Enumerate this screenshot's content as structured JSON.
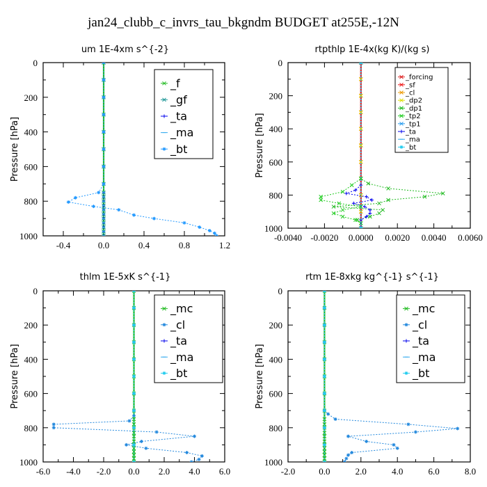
{
  "title": "jan24_clubb_c_invrs_tau_bkgndm  BUDGET at255E,-12N",
  "chart_data": [
    {
      "type": "line",
      "title": "um   1E-4xm s^{-2}",
      "ylabel": "Pressure [hPa]",
      "xlim": [
        -0.6,
        1.2
      ],
      "ylim": [
        1000,
        0
      ],
      "xticks": [
        "-0.4",
        "0.0",
        "0.4",
        "0.8",
        "1.2"
      ],
      "xtick_values": [
        -0.4,
        0.0,
        0.4,
        0.8,
        1.2
      ],
      "yticks": [
        "0",
        "200",
        "400",
        "600",
        "800",
        "1000"
      ],
      "ytick_values": [
        0,
        200,
        400,
        600,
        800,
        1000
      ],
      "legend": {
        "placement": "top-right",
        "font_size": 16
      },
      "series": [
        {
          "name": "_f",
          "color": "#22bb22",
          "marker": "x",
          "y": [
            0,
            100,
            200,
            300,
            400,
            500,
            600,
            700,
            750,
            775,
            800,
            825,
            850,
            875,
            900,
            925,
            950,
            975,
            1000
          ],
          "x": [
            0,
            0,
            0,
            0,
            0,
            0,
            0,
            0,
            0,
            0,
            0,
            0,
            0,
            0,
            0,
            0,
            0,
            0,
            0
          ]
        },
        {
          "name": "_gf",
          "color": "#229999",
          "marker": "x",
          "y": [
            0,
            100,
            200,
            300,
            400,
            500,
            600,
            700,
            750,
            775,
            800,
            825,
            850,
            875,
            900,
            925,
            950,
            975,
            1000
          ],
          "x": [
            0,
            0,
            0,
            0,
            0,
            0,
            0,
            0,
            0,
            0,
            0,
            0,
            0,
            0,
            0,
            0,
            0,
            0,
            0
          ]
        },
        {
          "name": "_ta",
          "color": "#0000ee",
          "marker": "+",
          "y": [
            0,
            100,
            200,
            300,
            400,
            500,
            600,
            700,
            750,
            775,
            800,
            825,
            850,
            875,
            900,
            925,
            950,
            975,
            1000
          ],
          "x": [
            0,
            0,
            0,
            0,
            0,
            0,
            0,
            0,
            0,
            0,
            0,
            0,
            0,
            0,
            0,
            0,
            0,
            0,
            0
          ]
        },
        {
          "name": "_ma",
          "color": "#33aaee",
          "marker": "-",
          "y": [
            0,
            100,
            200,
            300,
            400,
            500,
            600,
            700,
            750,
            775,
            800,
            825,
            850,
            875,
            900,
            925,
            950,
            975,
            1000
          ],
          "x": [
            0,
            0,
            0,
            0,
            0,
            0,
            0,
            0,
            0,
            0,
            0,
            0,
            0,
            0,
            0,
            0,
            0,
            0,
            0
          ]
        },
        {
          "name": "_bt",
          "color": "#2299ff",
          "marker": "*",
          "y": [
            0,
            100,
            200,
            300,
            400,
            500,
            600,
            700,
            750,
            780,
            805,
            830,
            850,
            880,
            900,
            925,
            950,
            970,
            985,
            1000
          ],
          "x": [
            0,
            0,
            0,
            0,
            0,
            0,
            0,
            0,
            -0.05,
            -0.28,
            -0.35,
            -0.1,
            0.15,
            0.3,
            0.5,
            0.8,
            0.95,
            1.05,
            1.1,
            1.12
          ]
        }
      ]
    },
    {
      "type": "line",
      "title": "rtpthlp   1E-4x(kg K)/(kg s)",
      "ylabel": "Pressure [hPa]",
      "xlim": [
        -0.004,
        0.006
      ],
      "ylim": [
        1000,
        0
      ],
      "xticks": [
        "-0.0040",
        "-0.0020",
        "0.0000",
        "0.0020",
        "0.0040",
        "0.0060"
      ],
      "xtick_values": [
        -0.004,
        -0.002,
        0.0,
        0.002,
        0.004,
        0.006
      ],
      "yticks": [
        "0",
        "200",
        "400",
        "600",
        "800",
        "1000"
      ],
      "ytick_values": [
        0,
        200,
        400,
        600,
        800,
        1000
      ],
      "legend": {
        "placement": "top-right",
        "font_size": 10
      },
      "series": [
        {
          "name": "_forcing",
          "color": "#dd2222",
          "marker": "x",
          "y": [
            0,
            100,
            200,
            300,
            400,
            500,
            600,
            700,
            800,
            900,
            1000
          ],
          "x": [
            0,
            0,
            0,
            0,
            0,
            0,
            0,
            0,
            0,
            0,
            0
          ]
        },
        {
          "name": "_sf",
          "color": "#ee1111",
          "marker": "x",
          "y": [
            0,
            100,
            200,
            300,
            400,
            500,
            600,
            700,
            800,
            900,
            1000
          ],
          "x": [
            0,
            0,
            0,
            0,
            0,
            0,
            0,
            0,
            0,
            0,
            0
          ]
        },
        {
          "name": "_cl",
          "color": "#ee9900",
          "marker": "x",
          "y": [
            0,
            100,
            200,
            300,
            400,
            500,
            600,
            700,
            800,
            900,
            1000
          ],
          "x": [
            0,
            0,
            0,
            0,
            0,
            0,
            0,
            0,
            0,
            0,
            0
          ]
        },
        {
          "name": "_dp2",
          "color": "#dddd00",
          "marker": "x",
          "y": [
            0,
            100,
            200,
            300,
            400,
            500,
            600,
            700,
            800,
            900,
            1000
          ],
          "x": [
            0,
            0,
            0,
            0,
            0,
            0,
            0,
            0,
            0,
            0,
            0
          ]
        },
        {
          "name": "_dp1",
          "color": "#22bb22",
          "marker": "x",
          "y": [
            0,
            700,
            730,
            760,
            790,
            810,
            830,
            850,
            870,
            890,
            910,
            930,
            950,
            970,
            1000
          ],
          "x": [
            0,
            0,
            0.0004,
            0.0015,
            0.0045,
            0.0035,
            0.0015,
            0.001,
            -0.0015,
            0.0012,
            0.001,
            0.0005,
            -0.0002,
            0,
            0
          ]
        },
        {
          "name": "_tp2",
          "color": "#22cc22",
          "marker": "x",
          "y": [
            0,
            700,
            740,
            780,
            810,
            830,
            850,
            870,
            890,
            910,
            930,
            950,
            970,
            1000
          ],
          "x": [
            0,
            0,
            -0.0005,
            -0.001,
            -0.0022,
            -0.0022,
            -0.0012,
            0,
            -0.001,
            -0.0015,
            -0.001,
            -0.0003,
            0,
            0
          ]
        },
        {
          "name": "_tp1",
          "color": "#2299ee",
          "marker": "x",
          "y": [
            0,
            1000
          ],
          "x": [
            0,
            0
          ]
        },
        {
          "name": "_ta",
          "color": "#0000ee",
          "marker": "+",
          "y": [
            0,
            740,
            770,
            790,
            810,
            830,
            850,
            870,
            890,
            910,
            930,
            950,
            1000
          ],
          "x": [
            0,
            0,
            -0.0003,
            -0.0008,
            0.0003,
            0.0006,
            -0.0004,
            0.0002,
            0.0005,
            0.0005,
            0.0003,
            0,
            0
          ]
        },
        {
          "name": "_ma",
          "color": "#33aaee",
          "marker": "-",
          "y": [
            0,
            1000
          ],
          "x": [
            0,
            0
          ]
        },
        {
          "name": "_bt",
          "color": "#22ccee",
          "marker": "*",
          "y": [
            0,
            1000
          ],
          "x": [
            0,
            0
          ]
        }
      ]
    },
    {
      "type": "line",
      "title": "thlm   1E-5xK s^{-1}",
      "ylabel": "Pressure [hPa]",
      "xlim": [
        -6.0,
        6.0
      ],
      "ylim": [
        1000,
        0
      ],
      "xticks": [
        "-6.0",
        "-4.0",
        "-2.0",
        "0.0",
        "2.0",
        "4.0",
        "6.0"
      ],
      "xtick_values": [
        -6,
        -4,
        -2,
        0,
        2,
        4,
        6
      ],
      "yticks": [
        "0",
        "200",
        "400",
        "600",
        "800",
        "1000"
      ],
      "ytick_values": [
        0,
        200,
        400,
        600,
        800,
        1000
      ],
      "legend": {
        "placement": "top-right",
        "font_size": 16
      },
      "series": [
        {
          "name": "_mc",
          "color": "#22bb22",
          "marker": "x",
          "y": [
            0,
            100,
            200,
            300,
            400,
            500,
            600,
            700,
            750,
            780,
            800,
            830,
            850,
            880,
            900,
            920,
            940,
            960,
            980,
            1000
          ],
          "x": [
            0,
            0,
            0,
            0,
            0,
            0,
            0,
            0,
            0,
            0,
            0,
            0,
            0,
            0,
            0,
            0,
            0,
            0,
            0,
            0
          ]
        },
        {
          "name": "_cl",
          "color": "#2288dd",
          "marker": "*",
          "y": [
            0,
            100,
            200,
            300,
            400,
            500,
            600,
            700,
            730,
            760,
            780,
            800,
            825,
            850,
            880,
            900,
            920,
            945,
            965,
            985,
            1000
          ],
          "x": [
            0,
            0,
            0,
            0,
            0,
            0,
            0,
            0,
            0,
            -0.3,
            -5.3,
            -5.3,
            1.5,
            4.0,
            0.5,
            -0.5,
            0.8,
            3.5,
            4.5,
            4.3,
            3.8
          ]
        },
        {
          "name": "_ta",
          "color": "#0000ee",
          "marker": "+",
          "y": [
            0,
            100,
            200,
            300,
            400,
            500,
            600,
            700,
            800,
            900,
            1000
          ],
          "x": [
            0,
            0,
            0,
            0,
            0,
            0,
            0,
            0,
            0,
            0,
            0
          ]
        },
        {
          "name": "_ma",
          "color": "#33aaee",
          "marker": "-",
          "y": [
            0,
            100,
            200,
            300,
            400,
            500,
            600,
            700,
            800,
            900,
            1000
          ],
          "x": [
            0,
            0,
            0,
            0,
            0,
            0,
            0,
            0,
            0,
            0,
            0
          ]
        },
        {
          "name": "_bt",
          "color": "#22ccee",
          "marker": "*",
          "y": [
            0,
            100,
            200,
            300,
            400,
            500,
            600,
            700,
            800,
            900,
            1000
          ],
          "x": [
            0,
            0,
            0,
            0,
            0,
            0,
            0,
            0,
            0,
            0,
            0
          ]
        }
      ]
    },
    {
      "type": "line",
      "title": "rtm   1E-8xkg kg^{-1} s^{-1}",
      "ylabel": "Pressure [hPa]",
      "xlim": [
        -2.0,
        8.0
      ],
      "ylim": [
        1000,
        0
      ],
      "xticks": [
        "-2.0",
        "0.0",
        "2.0",
        "4.0",
        "6.0",
        "8.0"
      ],
      "xtick_values": [
        -2,
        0,
        2,
        4,
        6,
        8
      ],
      "yticks": [
        "0",
        "200",
        "400",
        "600",
        "800",
        "1000"
      ],
      "ytick_values": [
        0,
        200,
        400,
        600,
        800,
        1000
      ],
      "legend": {
        "placement": "top-right",
        "font_size": 16
      },
      "series": [
        {
          "name": "_mc",
          "color": "#22bb22",
          "marker": "x",
          "y": [
            0,
            100,
            200,
            300,
            400,
            500,
            600,
            700,
            750,
            780,
            800,
            830,
            850,
            880,
            900,
            920,
            940,
            960,
            980,
            1000
          ],
          "x": [
            0,
            0,
            0,
            0,
            0,
            0,
            0,
            0,
            0,
            0,
            0,
            0,
            0,
            0,
            0,
            0,
            0,
            0,
            0,
            0
          ]
        },
        {
          "name": "_cl",
          "color": "#2288dd",
          "marker": "*",
          "y": [
            0,
            100,
            200,
            300,
            400,
            500,
            600,
            700,
            720,
            750,
            780,
            805,
            825,
            850,
            880,
            900,
            920,
            945,
            960,
            980,
            1000
          ],
          "x": [
            0,
            0,
            0,
            0,
            0,
            0,
            0,
            0,
            0.2,
            0.6,
            4.6,
            7.3,
            5.0,
            1.3,
            2.3,
            3.8,
            4.0,
            1.5,
            1.3,
            1.2,
            1.1
          ]
        },
        {
          "name": "_ta",
          "color": "#0000ee",
          "marker": "+",
          "y": [
            0,
            100,
            200,
            300,
            400,
            500,
            600,
            700,
            800,
            900,
            1000
          ],
          "x": [
            0,
            0,
            0,
            0,
            0,
            0,
            0,
            0,
            0,
            0,
            0
          ]
        },
        {
          "name": "_ma",
          "color": "#33aaee",
          "marker": "-",
          "y": [
            0,
            100,
            200,
            300,
            400,
            500,
            600,
            700,
            800,
            900,
            1000
          ],
          "x": [
            0,
            0,
            0,
            0,
            0,
            0,
            0,
            0,
            0,
            0,
            0
          ]
        },
        {
          "name": "_bt",
          "color": "#22ccee",
          "marker": "*",
          "y": [
            0,
            100,
            200,
            300,
            400,
            500,
            600,
            700,
            800,
            900,
            1000
          ],
          "x": [
            0,
            0,
            0,
            0,
            0,
            0,
            0,
            0,
            0,
            0,
            0
          ]
        }
      ]
    }
  ]
}
